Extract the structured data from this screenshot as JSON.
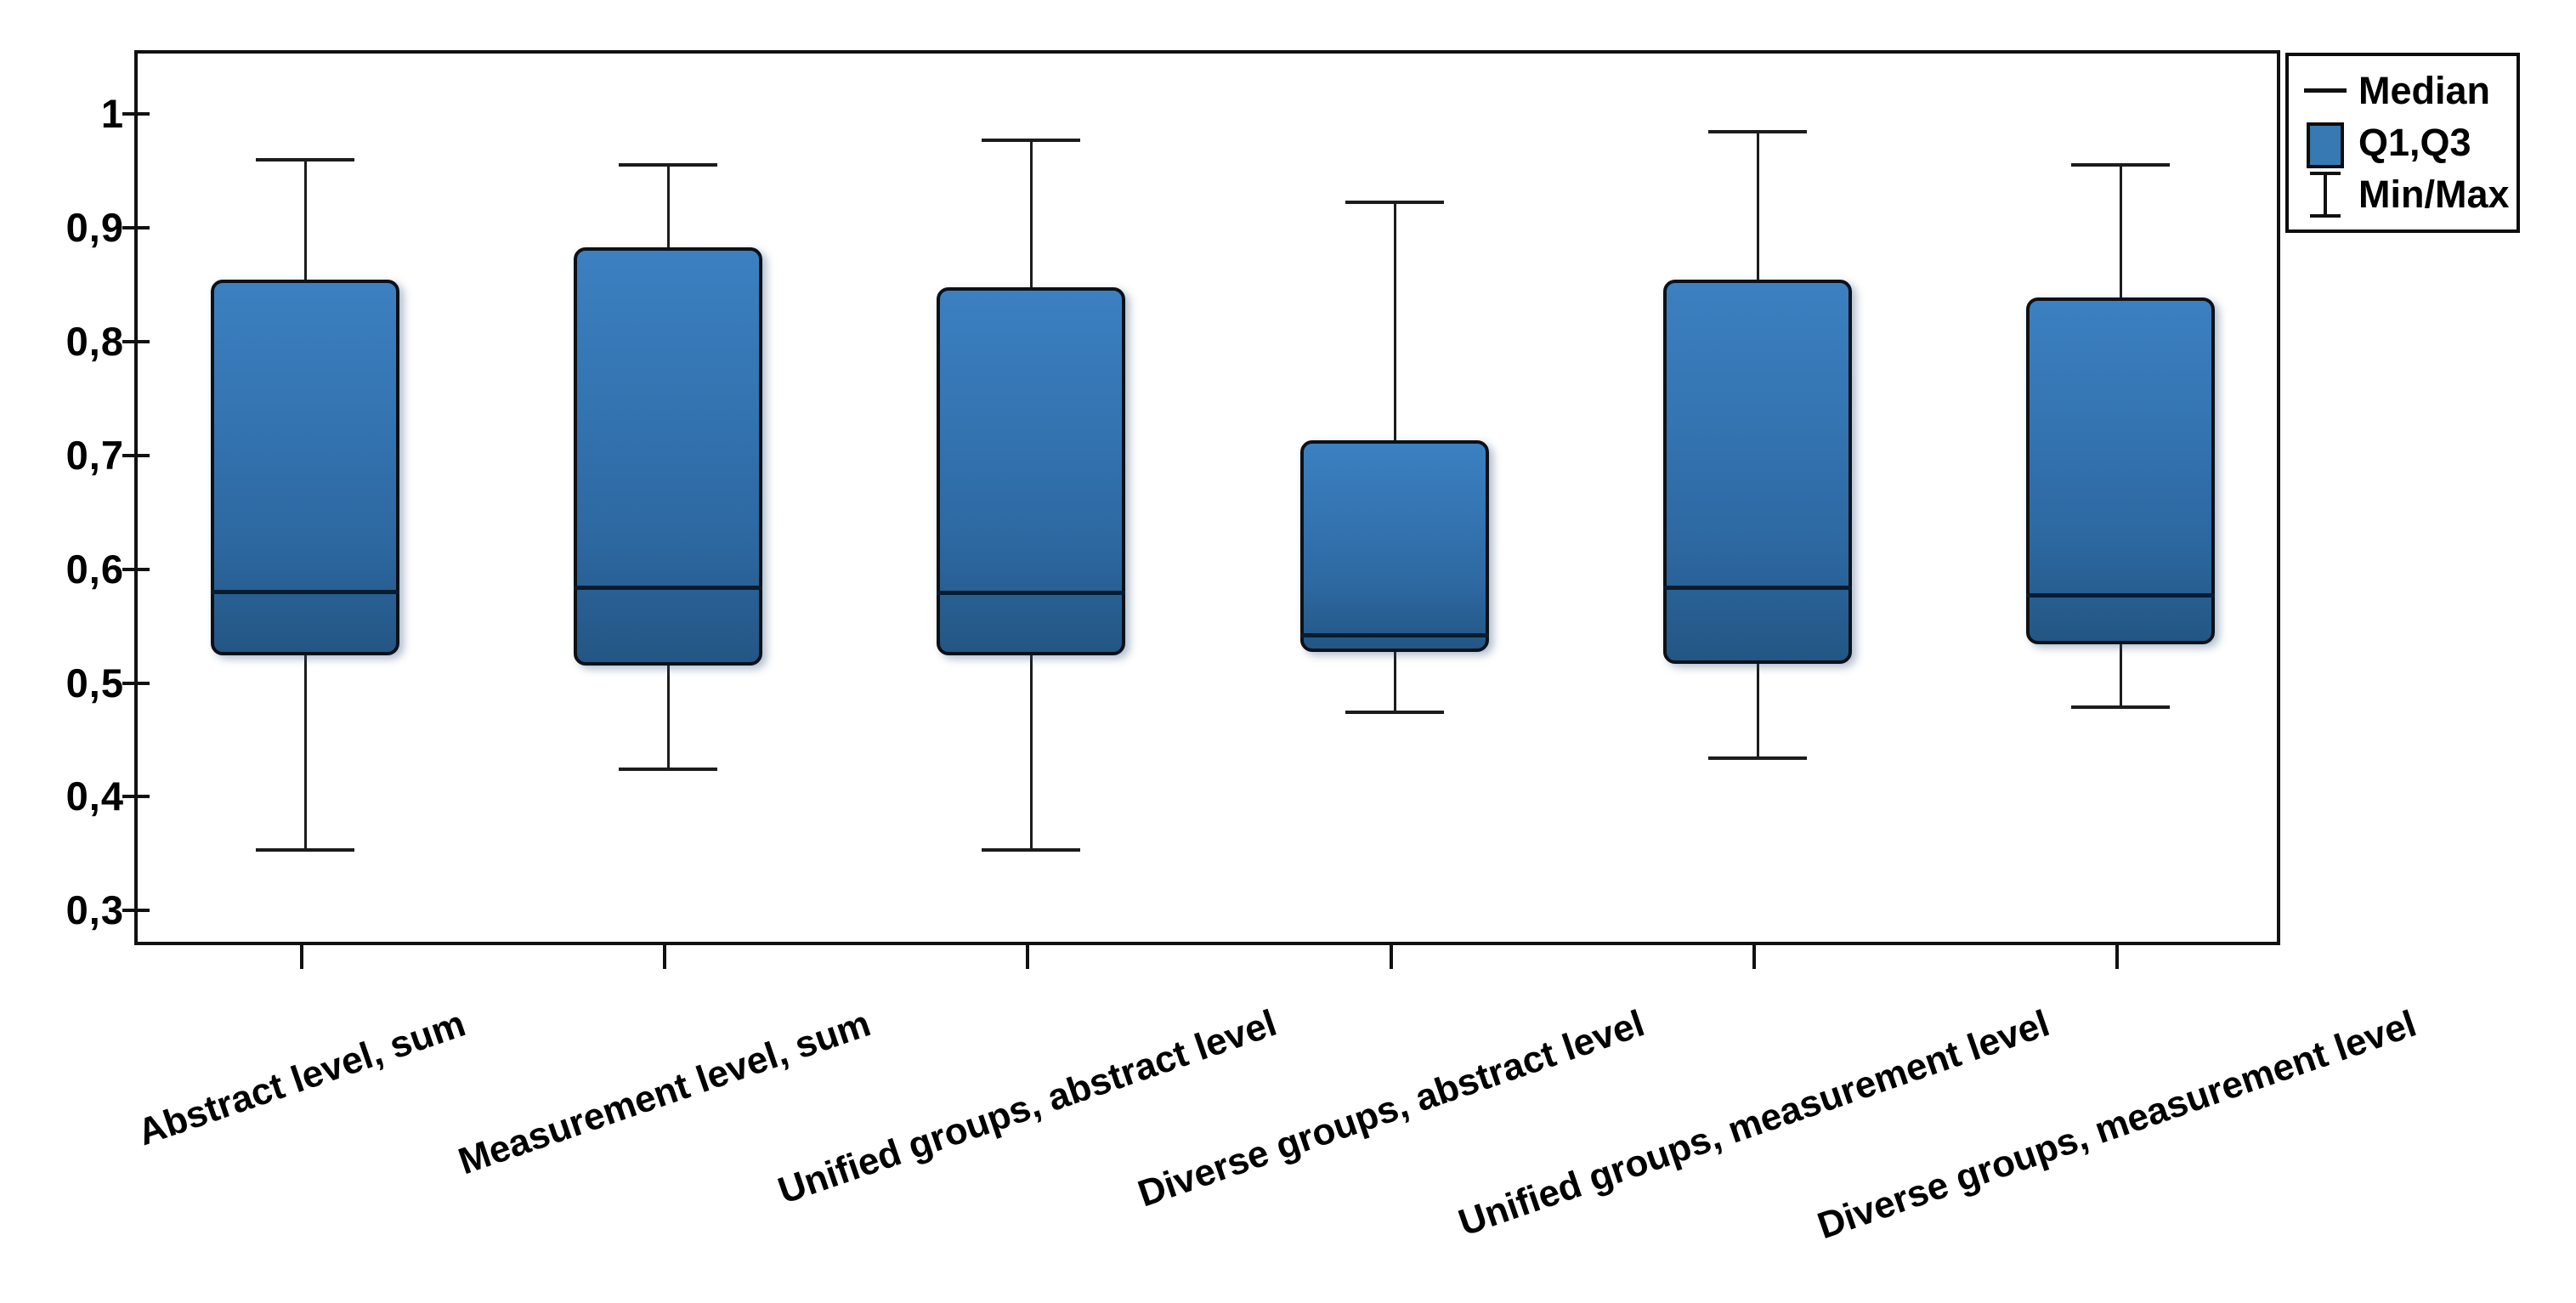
{
  "chart_data": {
    "type": "boxplot",
    "title": "",
    "xlabel": "",
    "ylabel": "",
    "decimal_separator": ",",
    "ylim": [
      0.27,
      1.06
    ],
    "grid": false,
    "categories": [
      "Abstract level, sum",
      "Measurement level, sum",
      "Unified groups, abstract level",
      "Diverse groups, abstract level",
      "Unified groups, measurement level",
      "Diverse groups, measurement level"
    ],
    "boxes": [
      {
        "category": "Abstract level, sum",
        "min": 0.356,
        "q1": 0.527,
        "median": 0.583,
        "q3": 0.857,
        "max": 0.963
      },
      {
        "category": "Measurement level, sum",
        "min": 0.427,
        "q1": 0.518,
        "median": 0.587,
        "q3": 0.886,
        "max": 0.958
      },
      {
        "category": "Unified groups, abstract level",
        "min": 0.356,
        "q1": 0.527,
        "median": 0.582,
        "q3": 0.851,
        "max": 0.98
      },
      {
        "category": "Diverse groups, abstract level",
        "min": 0.477,
        "q1": 0.53,
        "median": 0.545,
        "q3": 0.716,
        "max": 0.925
      },
      {
        "category": "Unified groups, measurement level",
        "min": 0.437,
        "q1": 0.52,
        "median": 0.587,
        "q3": 0.857,
        "max": 0.987
      },
      {
        "category": "Diverse groups, measurement level",
        "min": 0.482,
        "q1": 0.537,
        "median": 0.58,
        "q3": 0.842,
        "max": 0.958
      }
    ],
    "y_axis": {
      "ticks": [
        {
          "label": "1",
          "value": 1.0
        },
        {
          "label": "0,9",
          "value": 0.9
        },
        {
          "label": "0,8",
          "value": 0.8
        },
        {
          "label": "0,7",
          "value": 0.7
        },
        {
          "label": "0,6",
          "value": 0.6
        },
        {
          "label": "0,5",
          "value": 0.5
        },
        {
          "label": "0,4",
          "value": 0.4
        },
        {
          "label": "0,3",
          "value": 0.3
        }
      ]
    },
    "legend": {
      "position": "top-right",
      "items": [
        {
          "label": "Median",
          "glyph": "median-line-icon"
        },
        {
          "label": "Q1,Q3",
          "glyph": "quartile-box-icon"
        },
        {
          "label": "Min/Max",
          "glyph": "minmax-whisker-icon"
        }
      ]
    },
    "colors": {
      "box_fill_top": "#3c80c1",
      "box_fill_bottom": "#235684",
      "box_border": "#0c1117",
      "median_line": "#081c30",
      "axis": "#111111",
      "whisker": "#1c1c1c",
      "text": "#000000",
      "legend_swatch": "#3779b3",
      "background": "#ffffff"
    }
  }
}
